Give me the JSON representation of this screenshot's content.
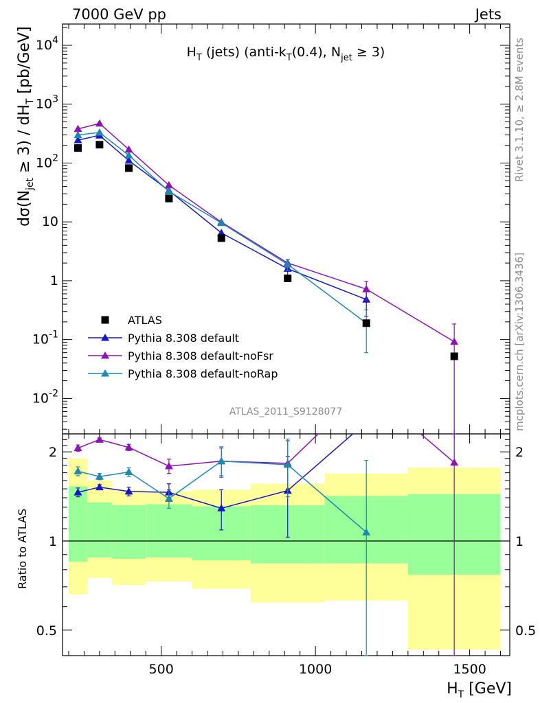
{
  "header": {
    "left": "7000 GeV pp",
    "right": "Jets"
  },
  "side_labels": {
    "rivet": "Rivet 3.1.10, ≥ 2.8M events",
    "mcplots": "mcplots.cern.ch [arXiv:1306.3436]"
  },
  "chart_data": {
    "type": "scatter",
    "title": "H_T (jets) (anti-k_T(0.4), N_jet ≥ 3)",
    "analysis_id": "ATLAS_2011_S9128077",
    "xlabel": "H_T [GeV]",
    "ylabel": "dσ(N_jet ≥ 3) / dH_T [pb/GeV]",
    "ratio_ylabel": "Ratio to ATLAS",
    "xlim": [
      180,
      1630
    ],
    "ylim": [
      0.0025,
      23000
    ],
    "yscale": "log",
    "ratio_ylim": [
      0.41,
      2.3
    ],
    "ratio_yscale": "log",
    "x_ticks": [
      500,
      1000,
      1500
    ],
    "y_ticks": [
      0.01,
      0.1,
      1,
      10,
      100,
      1000,
      10000
    ],
    "y_tick_labels": [
      "10^-2",
      "10^-1",
      "1",
      "10",
      "10^2",
      "10^3",
      "10^4"
    ],
    "ratio_ticks": [
      0.5,
      1,
      2
    ],
    "ratio_tick_labels": [
      "0.5",
      "1",
      "2"
    ],
    "legend_position": "bottom-left",
    "grid": false,
    "bins": [
      {
        "lo": 200,
        "hi": 260
      },
      {
        "lo": 260,
        "hi": 340
      },
      {
        "lo": 340,
        "hi": 450
      },
      {
        "lo": 450,
        "hi": 600
      },
      {
        "lo": 600,
        "hi": 790
      },
      {
        "lo": 790,
        "hi": 1030
      },
      {
        "lo": 1030,
        "hi": 1300
      },
      {
        "lo": 1300,
        "hi": 1600
      }
    ],
    "x": [
      230,
      300,
      395,
      525,
      695,
      910,
      1165,
      1450
    ],
    "data": {
      "name": "ATLAS",
      "values": [
        180,
        205,
        82,
        25,
        5.3,
        1.1,
        0.19,
        0.052
      ],
      "color": "#000000",
      "band_inner": [
        [
          0.85,
          1.53
        ],
        [
          0.88,
          1.35
        ],
        [
          0.87,
          1.32
        ],
        [
          0.88,
          1.33
        ],
        [
          0.86,
          1.31
        ],
        [
          0.84,
          1.32
        ],
        [
          0.84,
          1.42
        ],
        [
          0.77,
          1.44
        ]
      ],
      "band_outer": [
        [
          0.66,
          1.9
        ],
        [
          0.75,
          1.6
        ],
        [
          0.71,
          1.49
        ],
        [
          0.73,
          1.47
        ],
        [
          0.69,
          1.49
        ],
        [
          0.62,
          1.56
        ],
        [
          0.63,
          1.69
        ],
        [
          0.43,
          1.77
        ]
      ]
    },
    "series": [
      {
        "name": "Pythia 8.308 default",
        "color": "#1515cc",
        "values": [
          245,
          295,
          110,
          34,
          6.5,
          1.6,
          0.48
        ],
        "ratio": [
          1.46,
          1.52,
          1.47,
          1.46,
          1.29,
          1.48,
          2.52
        ],
        "ratio_err": [
          0.05,
          0.03,
          0.05,
          0.1,
          0.2,
          0.45,
          0.0
        ],
        "y_err_lo": [
          0,
          0,
          0,
          0,
          0,
          0.45,
          0.23
        ],
        "y_err_hi": [
          0,
          0,
          0,
          0,
          0,
          0.45,
          0.23
        ]
      },
      {
        "name": "Pythia 8.308 default-noFsr",
        "color": "#9010b8",
        "values": [
          380,
          470,
          170,
          42,
          9.9,
          2.0,
          0.72,
          0.092
        ],
        "ratio": [
          2.06,
          2.2,
          2.07,
          1.79,
          1.86,
          1.83,
          3.3,
          1.84
        ],
        "ratio_err": [
          0.05,
          0.03,
          0.05,
          0.1,
          0.2,
          0.35,
          0.0,
          1.8
        ],
        "y_err_lo": [
          0,
          0,
          0,
          0,
          0,
          0.3,
          0.25,
          0.092
        ],
        "y_err_hi": [
          0,
          0,
          0,
          0,
          0,
          0.3,
          0.25,
          0.092
        ]
      },
      {
        "name": "Pythia 8.308 default-noRap",
        "color": "#1a8aae",
        "values": [
          300,
          330,
          135,
          33,
          9.6,
          1.9,
          0.19
        ],
        "ratio": [
          1.72,
          1.65,
          1.71,
          1.39,
          1.86,
          1.81,
          1.07
        ],
        "ratio_err": [
          0.06,
          0.04,
          0.06,
          0.1,
          0.22,
          0.4,
          0.8
        ],
        "y_err_lo": [
          0,
          0,
          0,
          0,
          0,
          0.4,
          0.13
        ],
        "y_err_hi": [
          0,
          0,
          0,
          0,
          0,
          0.4,
          0.13
        ]
      }
    ]
  }
}
